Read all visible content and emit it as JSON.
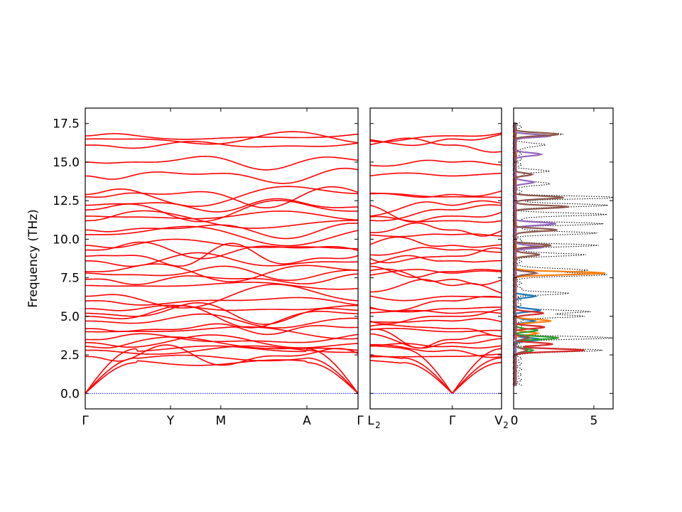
{
  "chart_data": [
    {
      "type": "line",
      "panel": "phonon-dispersion-left",
      "ylabel": "Frequency (THz)",
      "ylim": [
        -1.0,
        18.5
      ],
      "yticks": [
        0.0,
        2.5,
        5.0,
        7.5,
        10.0,
        12.5,
        15.0,
        17.5
      ],
      "ytick_labels": [
        "0.0",
        "2.5",
        "5.0",
        "7.5",
        "10.0",
        "12.5",
        "15.0",
        "17.5"
      ],
      "x_labels": [
        "Γ",
        "Y",
        "M",
        "A",
        "Γ"
      ],
      "x_positions": [
        0,
        1,
        1.59,
        2.6,
        3.2
      ],
      "series_color": "#ff0000",
      "zero_line_color": "#0000ff",
      "gamma_levels": [
        0,
        0,
        0,
        2.4,
        2.8,
        3.05,
        3.3,
        3.5,
        4.0,
        4.2,
        4.7,
        5.0,
        5.2,
        5.5,
        6.0,
        6.3,
        7.0,
        7.4,
        7.8,
        7.9,
        8.6,
        8.9,
        9.3,
        9.6,
        10.3,
        10.6,
        11.2,
        11.5,
        11.9,
        12.2,
        12.75,
        12.9,
        14.1,
        15.0,
        16.1,
        16.5,
        16.7
      ]
    },
    {
      "type": "line",
      "panel": "phonon-dispersion-middle",
      "ylim": [
        -1.0,
        18.5
      ],
      "x_labels": [
        "L",
        "Γ",
        "V"
      ],
      "x_label_subscripts": [
        "2",
        "",
        "2"
      ],
      "x_positions": [
        0,
        1,
        1.6
      ],
      "series_color": "#ff0000",
      "zero_line_color": "#0000ff"
    },
    {
      "type": "line",
      "panel": "projected-dos",
      "xlim": [
        0,
        6.2
      ],
      "ylim": [
        -1.0,
        18.5
      ],
      "xticks": [
        0,
        5
      ],
      "xtick_labels": [
        "0",
        "5"
      ],
      "series": [
        {
          "color": "#000000",
          "style": "dotted",
          "peaks": [
            [
              2.8,
              5.5
            ],
            [
              3.6,
              5.8
            ],
            [
              5.0,
              4.0
            ],
            [
              5.3,
              4.5
            ],
            [
              6.5,
              3.0
            ],
            [
              7.7,
              5.7
            ],
            [
              8.0,
              4.5
            ],
            [
              9.0,
              4.2
            ],
            [
              9.6,
              4.8
            ],
            [
              10.4,
              4.9
            ],
            [
              11.0,
              5.1
            ],
            [
              11.6,
              5.5
            ],
            [
              12.2,
              5.8
            ],
            [
              12.7,
              6.3
            ],
            [
              13.6,
              2.2
            ],
            [
              14.4,
              1.9
            ],
            [
              16.1,
              1.8
            ],
            [
              16.8,
              2.9
            ]
          ]
        },
        {
          "color": "#1f77b4",
          "style": "solid",
          "peaks": [
            [
              3.5,
              1.6
            ],
            [
              4.7,
              1.2
            ],
            [
              5.4,
              1.6
            ],
            [
              6.3,
              1.2
            ]
          ]
        },
        {
          "color": "#ff7f0e",
          "style": "solid",
          "peaks": [
            [
              3.9,
              1.4
            ],
            [
              4.7,
              2.3
            ],
            [
              7.8,
              5.7
            ]
          ]
        },
        {
          "color": "#2ca02c",
          "style": "solid",
          "peaks": [
            [
              2.8,
              1.2
            ],
            [
              3.6,
              2.7
            ],
            [
              4.1,
              1.4
            ]
          ]
        },
        {
          "color": "#d62728",
          "style": "solid",
          "peaks": [
            [
              2.8,
              4.3
            ],
            [
              3.2,
              2.3
            ],
            [
              4.3,
              1.8
            ],
            [
              5.2,
              1.8
            ]
          ]
        },
        {
          "color": "#9467bd",
          "style": "solid",
          "peaks": [
            [
              9.5,
              1.8
            ],
            [
              11.0,
              2.6
            ],
            [
              13.7,
              1.2
            ],
            [
              15.5,
              1.7
            ],
            [
              16.7,
              2.2
            ]
          ]
        },
        {
          "color": "#8c564b",
          "style": "solid",
          "peaks": [
            [
              2.8,
              0.8
            ],
            [
              3.6,
              0.9
            ],
            [
              7.8,
              1.3
            ],
            [
              9.0,
              1.5
            ],
            [
              9.6,
              2.2
            ],
            [
              10.6,
              2.6
            ],
            [
              12.1,
              3.3
            ],
            [
              12.7,
              3.0
            ],
            [
              14.2,
              1.0
            ],
            [
              16.8,
              2.8
            ]
          ]
        }
      ]
    }
  ]
}
